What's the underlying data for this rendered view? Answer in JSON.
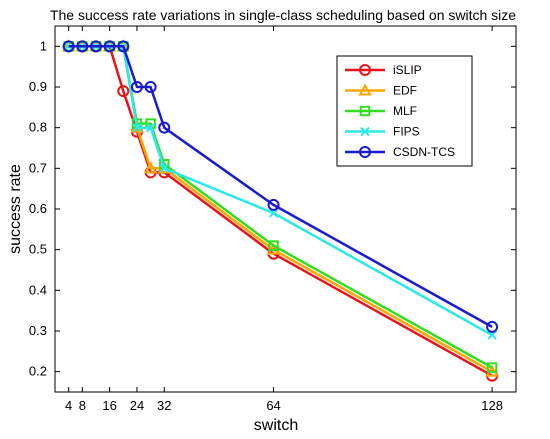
{
  "chart_data": {
    "type": "line",
    "title": "The success rate variations in single-class scheduling based on switch size",
    "xlabel": "switch",
    "ylabel": "success rate",
    "xlim": [
      0,
      135
    ],
    "ylim": [
      0.15,
      1.05
    ],
    "xticks": [
      4,
      8,
      16,
      24,
      32,
      64,
      128
    ],
    "yticks": [
      0.2,
      0.3,
      0.4,
      0.5,
      0.6,
      0.7,
      0.8,
      0.9,
      1
    ],
    "ytick_labels": [
      "0.2",
      "0.3",
      "0.4",
      "0.5",
      "0.6",
      "0.7",
      "0.8",
      "0.9",
      "1"
    ],
    "grid": false,
    "legend_position": "top-right",
    "series": [
      {
        "name": "iSLIP",
        "color": "#e8141a",
        "marker": "circle",
        "x": [
          4,
          8,
          12,
          16,
          20,
          24,
          28,
          32,
          64,
          128
        ],
        "y": [
          1,
          1,
          1,
          1,
          0.89,
          0.79,
          0.69,
          0.69,
          0.49,
          0.19
        ]
      },
      {
        "name": "EDF",
        "color": "#ffa500",
        "marker": "triangle",
        "x": [
          4,
          8,
          12,
          16,
          20,
          24,
          28,
          32,
          64,
          128
        ],
        "y": [
          1,
          1,
          1,
          1,
          1,
          0.8,
          0.7,
          0.7,
          0.5,
          0.2
        ]
      },
      {
        "name": "MLF",
        "color": "#33dd22",
        "marker": "square",
        "x": [
          4,
          8,
          12,
          16,
          20,
          24,
          28,
          32,
          64,
          128
        ],
        "y": [
          1,
          1,
          1,
          1,
          1,
          0.81,
          0.81,
          0.71,
          0.51,
          0.21
        ]
      },
      {
        "name": "FIPS",
        "color": "#2ee8e8",
        "marker": "x",
        "x": [
          4,
          8,
          12,
          16,
          20,
          24,
          28,
          32,
          64,
          128
        ],
        "y": [
          1,
          1,
          1,
          1,
          1,
          0.8,
          0.8,
          0.7,
          0.59,
          0.29
        ]
      },
      {
        "name": "CSDN-TCS",
        "color": "#1a1ad0",
        "marker": "circle",
        "x": [
          4,
          8,
          12,
          16,
          20,
          24,
          28,
          32,
          64,
          128
        ],
        "y": [
          1,
          1,
          1,
          1,
          1,
          0.9,
          0.9,
          0.8,
          0.61,
          0.31
        ]
      }
    ]
  }
}
